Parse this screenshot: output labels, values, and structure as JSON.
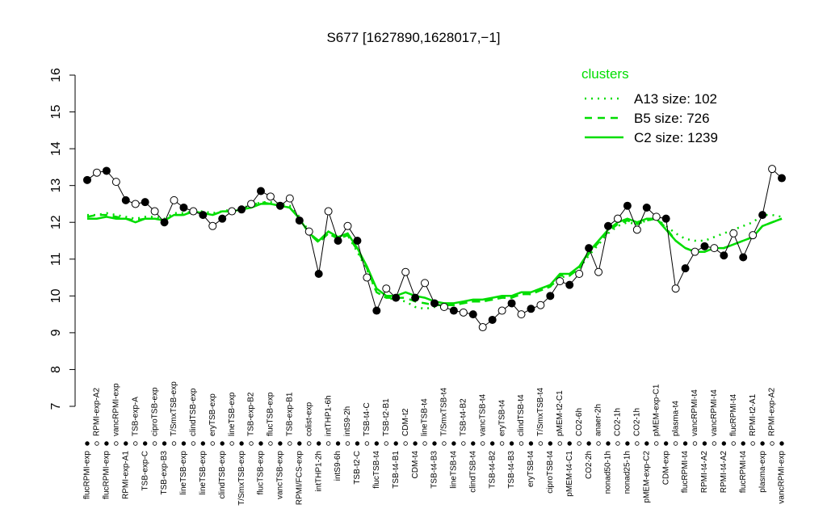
{
  "chart_data": {
    "type": "line",
    "title": "S677 [1627890,1628017,−1]",
    "categories": [
      "flucRPMI-exp",
      "RPMI-exp-A2",
      "flucRPMI-exp",
      "vancRPMI-exp",
      "RPMI-exp-A1",
      "TSB-exp-A",
      "TSB-exp-C",
      "ciproTSB-exp",
      "TSB-exp-B3",
      "T/SmxTSB-exp",
      "lineTSB-exp",
      "clindTSB-exp",
      "lineTSB-exp",
      "eryTSB-exp",
      "clindTSB-exp",
      "lineTSB-exp",
      "T/SmxTSB-exp",
      "TSB-exp-B2",
      "flucTSB-exp",
      "flucTSB-exp",
      "vancTSB-exp",
      "TSB-exp-B1",
      "RPMI/FCS-exp",
      "colist-exp",
      "intTHP1-2h",
      "intTHP1-6h",
      "intS9-6h",
      "intS9-2h",
      "TSB-t2-C",
      "TSB-t4-C",
      "flucTSB-t4",
      "TSB-t2-B1",
      "TSB-t4-B1",
      "CDM-t2",
      "CDM-t4",
      "lineTSB-t4",
      "TSB-t4-B3",
      "T/SmxTSB-t4",
      "lineTSB-t4",
      "TSB-t4-B2",
      "clindTSB-t4",
      "vancTSB-t4",
      "TSB-t4-B2",
      "eryTSB-t4",
      "TSB-t4-B3",
      "clindTSB-t4",
      "eryTSB-t4",
      "T/SmxTSB-t4",
      "ciproTSB-t4",
      "pMEM-t2-C1",
      "pMEM-t4-C1",
      "CO2-6h",
      "CO2-2h",
      "anaer-2h",
      "nonad50-1h",
      "CO2-1h",
      "nonad25-1h",
      "CO2-1h",
      "pMEM-exp-C2",
      "pMEM-exp-C1",
      "CDM-exp",
      "plasma-t4",
      "flucRPMI-t4",
      "vancRPMI-t4",
      "RPMI-t4-A2",
      "vancRPMI-t4",
      "RPMI-t4-A2",
      "flucRPMI-t4",
      "flucRPMI-t4",
      "RPMI-t2-A1",
      "plasma-exp",
      "RPMI-exp-A2",
      "vancRPMI-exp"
    ],
    "values": [
      13.15,
      13.35,
      13.4,
      13.1,
      12.6,
      12.5,
      12.55,
      12.3,
      12.0,
      12.6,
      12.4,
      12.3,
      12.2,
      11.9,
      12.1,
      12.3,
      12.35,
      12.5,
      12.85,
      12.7,
      12.45,
      12.65,
      12.05,
      11.75,
      10.6,
      12.3,
      11.5,
      11.9,
      11.5,
      10.5,
      9.6,
      10.2,
      9.95,
      10.65,
      9.95,
      10.35,
      9.8,
      9.7,
      9.6,
      9.55,
      9.5,
      9.15,
      9.35,
      9.6,
      9.8,
      9.5,
      9.65,
      9.75,
      10.0,
      10.4,
      10.3,
      10.6,
      11.3,
      10.65,
      11.9,
      12.1,
      12.45,
      11.8,
      12.4,
      12.15,
      12.1,
      10.2,
      10.75,
      11.2,
      11.35,
      11.3,
      11.1,
      11.7,
      11.05,
      11.65,
      12.2,
      13.45,
      13.2
    ],
    "color": "#000000",
    "legend_title": "clusters",
    "series": [
      {
        "name": "A13 size: 102",
        "color": "#00dd00",
        "dash": "dotted",
        "values": [
          12.2,
          12.2,
          12.25,
          12.2,
          12.15,
          12.1,
          12.15,
          12.15,
          12.1,
          12.25,
          12.25,
          12.3,
          12.3,
          12.25,
          12.3,
          12.35,
          12.4,
          12.45,
          12.55,
          12.55,
          12.5,
          12.45,
          12.15,
          11.75,
          11.45,
          11.7,
          11.55,
          11.65,
          11.2,
          10.7,
          10.1,
          9.95,
          9.9,
          9.85,
          9.7,
          9.65,
          9.7,
          9.7,
          9.75,
          9.8,
          9.85,
          9.85,
          9.9,
          9.95,
          9.95,
          10.05,
          10.05,
          10.15,
          10.25,
          10.5,
          10.55,
          10.75,
          11.1,
          11.4,
          11.7,
          11.9,
          12.0,
          11.95,
          12.05,
          12.1,
          11.9,
          11.7,
          11.55,
          11.5,
          11.5,
          11.6,
          11.7,
          11.8,
          11.9,
          12.0,
          12.2,
          12.2,
          12.15
        ]
      },
      {
        "name": "B5 size: 726",
        "color": "#00dd00",
        "dash": "dashed",
        "values": [
          12.15,
          12.2,
          12.2,
          12.15,
          12.1,
          12.05,
          12.1,
          12.1,
          12.05,
          12.2,
          12.2,
          12.3,
          12.25,
          12.2,
          12.3,
          12.3,
          12.35,
          12.45,
          12.55,
          12.5,
          12.45,
          12.4,
          12.1,
          11.7,
          11.45,
          11.7,
          11.55,
          11.65,
          11.25,
          10.75,
          10.1,
          9.95,
          9.95,
          9.95,
          9.85,
          9.8,
          9.75,
          9.75,
          9.75,
          9.8,
          9.85,
          9.85,
          9.9,
          9.95,
          9.95,
          10.05,
          10.05,
          10.15,
          10.25,
          10.55,
          10.55,
          10.75,
          11.15,
          11.45,
          11.75,
          11.95,
          12.05,
          11.95,
          12.05,
          12.1,
          11.85,
          11.5,
          11.3,
          11.2,
          11.2,
          11.3,
          11.3,
          11.4,
          11.5,
          11.6,
          11.9,
          12.0,
          12.1
        ]
      },
      {
        "name": "C2 size: 1239",
        "color": "#00dd00",
        "dash": "solid",
        "values": [
          12.1,
          12.1,
          12.15,
          12.1,
          12.1,
          12.0,
          12.1,
          12.1,
          12.05,
          12.2,
          12.2,
          12.3,
          12.25,
          12.2,
          12.3,
          12.3,
          12.35,
          12.4,
          12.5,
          12.5,
          12.45,
          12.4,
          12.1,
          11.7,
          11.5,
          11.75,
          11.6,
          11.7,
          11.3,
          10.8,
          10.2,
          10.0,
          10.0,
          10.1,
          10.0,
          9.95,
          9.85,
          9.8,
          9.8,
          9.85,
          9.9,
          9.9,
          9.95,
          10.0,
          10.0,
          10.1,
          10.1,
          10.2,
          10.3,
          10.6,
          10.6,
          10.8,
          11.2,
          11.5,
          11.8,
          12.0,
          12.1,
          12.0,
          12.1,
          12.1,
          11.8,
          11.5,
          11.3,
          11.2,
          11.2,
          11.3,
          11.3,
          11.4,
          11.5,
          11.6,
          11.9,
          12.0,
          12.1
        ]
      }
    ],
    "ylim": [
      7,
      16
    ],
    "yticks": [
      7,
      8,
      9,
      10,
      11,
      12,
      13,
      14,
      15,
      16
    ],
    "legend_position": "top-right"
  }
}
